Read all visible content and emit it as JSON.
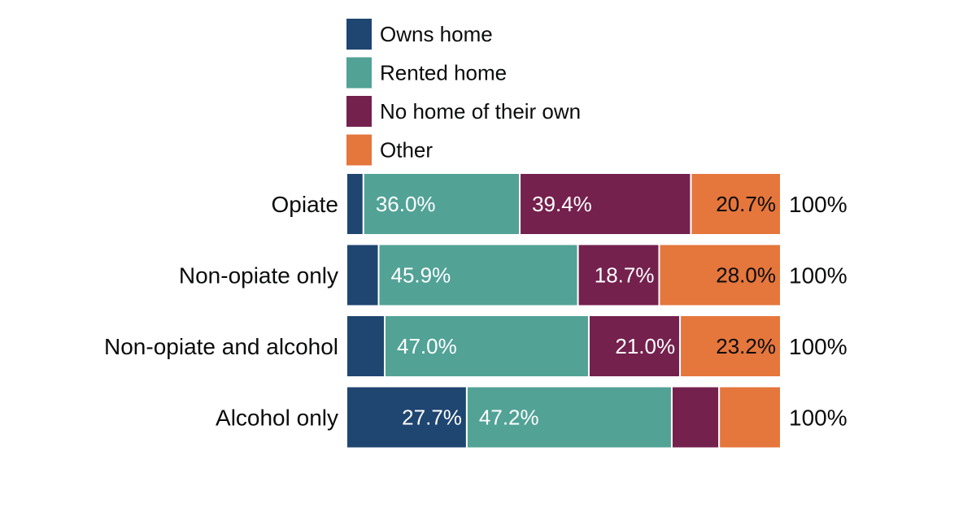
{
  "chart_data": {
    "type": "bar",
    "orientation": "horizontal",
    "stacked": true,
    "grid": false,
    "legend_position": "top",
    "categories": [
      "Opiate",
      "Non-opiate only",
      "Non-opiate and alcohol",
      "Alcohol only"
    ],
    "series": [
      {
        "name": "Owns home",
        "color": "#1f4571",
        "values": [
          3.9,
          7.4,
          8.8,
          27.7
        ],
        "labels": [
          "",
          "",
          "",
          "27.7%"
        ]
      },
      {
        "name": "Rented home",
        "color": "#52a296",
        "values": [
          36.0,
          45.9,
          47.0,
          47.2
        ],
        "labels": [
          "36.0%",
          "45.9%",
          "47.0%",
          "47.2%"
        ]
      },
      {
        "name": "No home of their own",
        "color": "#74214e",
        "values": [
          39.4,
          18.7,
          21.0,
          10.9
        ],
        "labels": [
          "39.4%",
          "18.7%",
          "21.0%",
          ""
        ]
      },
      {
        "name": "Other",
        "color": "#e5763c",
        "values": [
          20.7,
          28.0,
          23.2,
          14.2
        ],
        "labels": [
          "20.7%",
          "28.0%",
          "23.2%",
          ""
        ]
      }
    ],
    "totals": [
      "100%",
      "100%",
      "100%",
      "100%"
    ],
    "label_colors": {
      "light": "#ffffff",
      "dark": "#0b0c0c"
    },
    "xlim": [
      0,
      100
    ]
  }
}
